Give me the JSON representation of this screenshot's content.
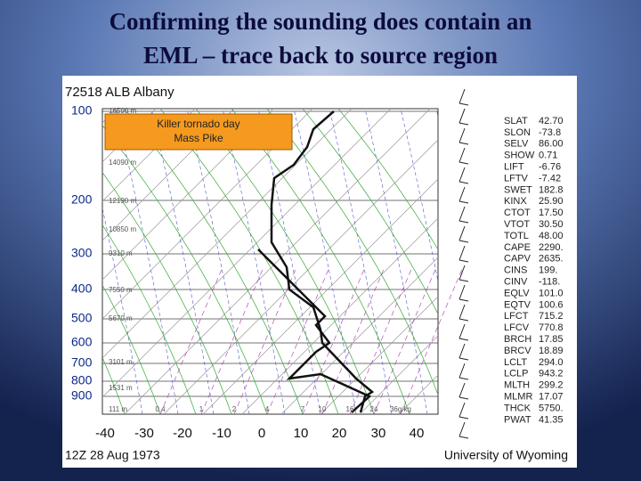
{
  "slide": {
    "title": [
      "Confirming the sounding does contain an",
      "EML – trace back to source region"
    ]
  },
  "diagram": {
    "station": "72518 ALB Albany",
    "annotation": [
      "Killer tornado day",
      "Mass Pike"
    ],
    "pressure_labels": [
      "100",
      "200",
      "300",
      "400",
      "500",
      "600",
      "700",
      "800",
      "900"
    ],
    "temperature_labels": [
      "-40",
      "-30",
      "-20",
      "-10",
      "0",
      "10",
      "20",
      "30",
      "40"
    ],
    "height_labels": [
      "16590 m",
      "14090 m",
      "12190 m",
      "10850 m",
      "9310 m",
      "7550 m",
      "5670 m",
      "3101 m",
      "1531 m",
      "111 m"
    ],
    "mixing_ratio_labels": [
      "0.4",
      "1",
      "2",
      "4",
      "7",
      "10",
      "16",
      "24",
      "36g/kg"
    ],
    "indices": [
      [
        "SLAT",
        "42.70"
      ],
      [
        "SLON",
        "-73.8"
      ],
      [
        "SELV",
        "86.00"
      ],
      [
        "SHOW",
        "0.71"
      ],
      [
        "LIFT",
        "-6.76"
      ],
      [
        "LFTV",
        "-7.42"
      ],
      [
        "SWET",
        "182.8"
      ],
      [
        "KINX",
        "25.90"
      ],
      [
        "CTOT",
        "17.50"
      ],
      [
        "VTOT",
        "30.50"
      ],
      [
        "TOTL",
        "48.00"
      ],
      [
        "CAPE",
        "2290."
      ],
      [
        "CAPV",
        "2635."
      ],
      [
        "CINS",
        "199."
      ],
      [
        "CINV",
        "-118."
      ],
      [
        "EQLV",
        "101.0"
      ],
      [
        "EQTV",
        "100.6"
      ],
      [
        "LFCT",
        "715.2"
      ],
      [
        "LFCV",
        "770.8"
      ],
      [
        "BRCH",
        "17.85"
      ],
      [
        "BRCV",
        "18.89"
      ],
      [
        "LCLT",
        "294.0"
      ],
      [
        "LCLP",
        "943.2"
      ],
      [
        "MLTH",
        "299.2"
      ],
      [
        "MLMR",
        "17.07"
      ],
      [
        "THCK",
        "5750."
      ],
      [
        "PWAT",
        "41.35"
      ]
    ],
    "time": "12Z 28 Aug 1973",
    "source": "University of Wyoming"
  }
}
